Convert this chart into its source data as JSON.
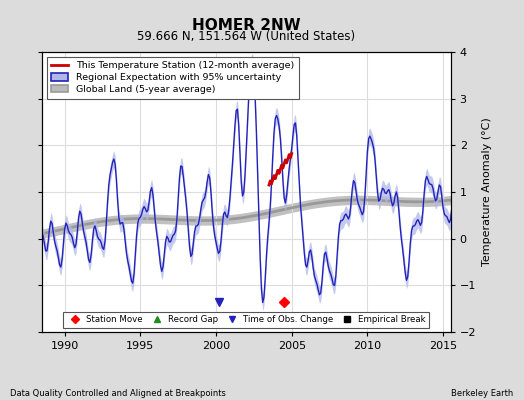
{
  "title": "HOMER 2NW",
  "subtitle": "59.666 N, 151.564 W (United States)",
  "ylabel": "Temperature Anomaly (°C)",
  "xlabel_left": "Data Quality Controlled and Aligned at Breakpoints",
  "xlabel_right": "Berkeley Earth",
  "ylim": [
    -2,
    4
  ],
  "xlim": [
    1988.5,
    2015.5
  ],
  "xticks": [
    1990,
    1995,
    2000,
    2005,
    2010,
    2015
  ],
  "yticks": [
    -2,
    -1,
    0,
    1,
    2,
    3,
    4
  ],
  "fig_bg_color": "#dcdcdc",
  "plot_bg_color": "#ffffff",
  "grid_color": "#dddddd",
  "regional_color": "#2222bb",
  "regional_fill_color": "#b0b8e8",
  "station_color": "#cc0000",
  "global_color": "#999999",
  "global_fill_color": "#bbbbbb",
  "station_move_x": 2004.5,
  "station_move_y": -1.35,
  "time_obs_x": 2000.2,
  "legend_items": [
    {
      "label": "This Temperature Station (12-month average)"
    },
    {
      "label": "Regional Expectation with 95% uncertainty"
    },
    {
      "label": "Global Land (5-year average)"
    }
  ],
  "marker_legend": [
    {
      "label": "Station Move"
    },
    {
      "label": "Record Gap"
    },
    {
      "label": "Time of Obs. Change"
    },
    {
      "label": "Empirical Break"
    }
  ]
}
